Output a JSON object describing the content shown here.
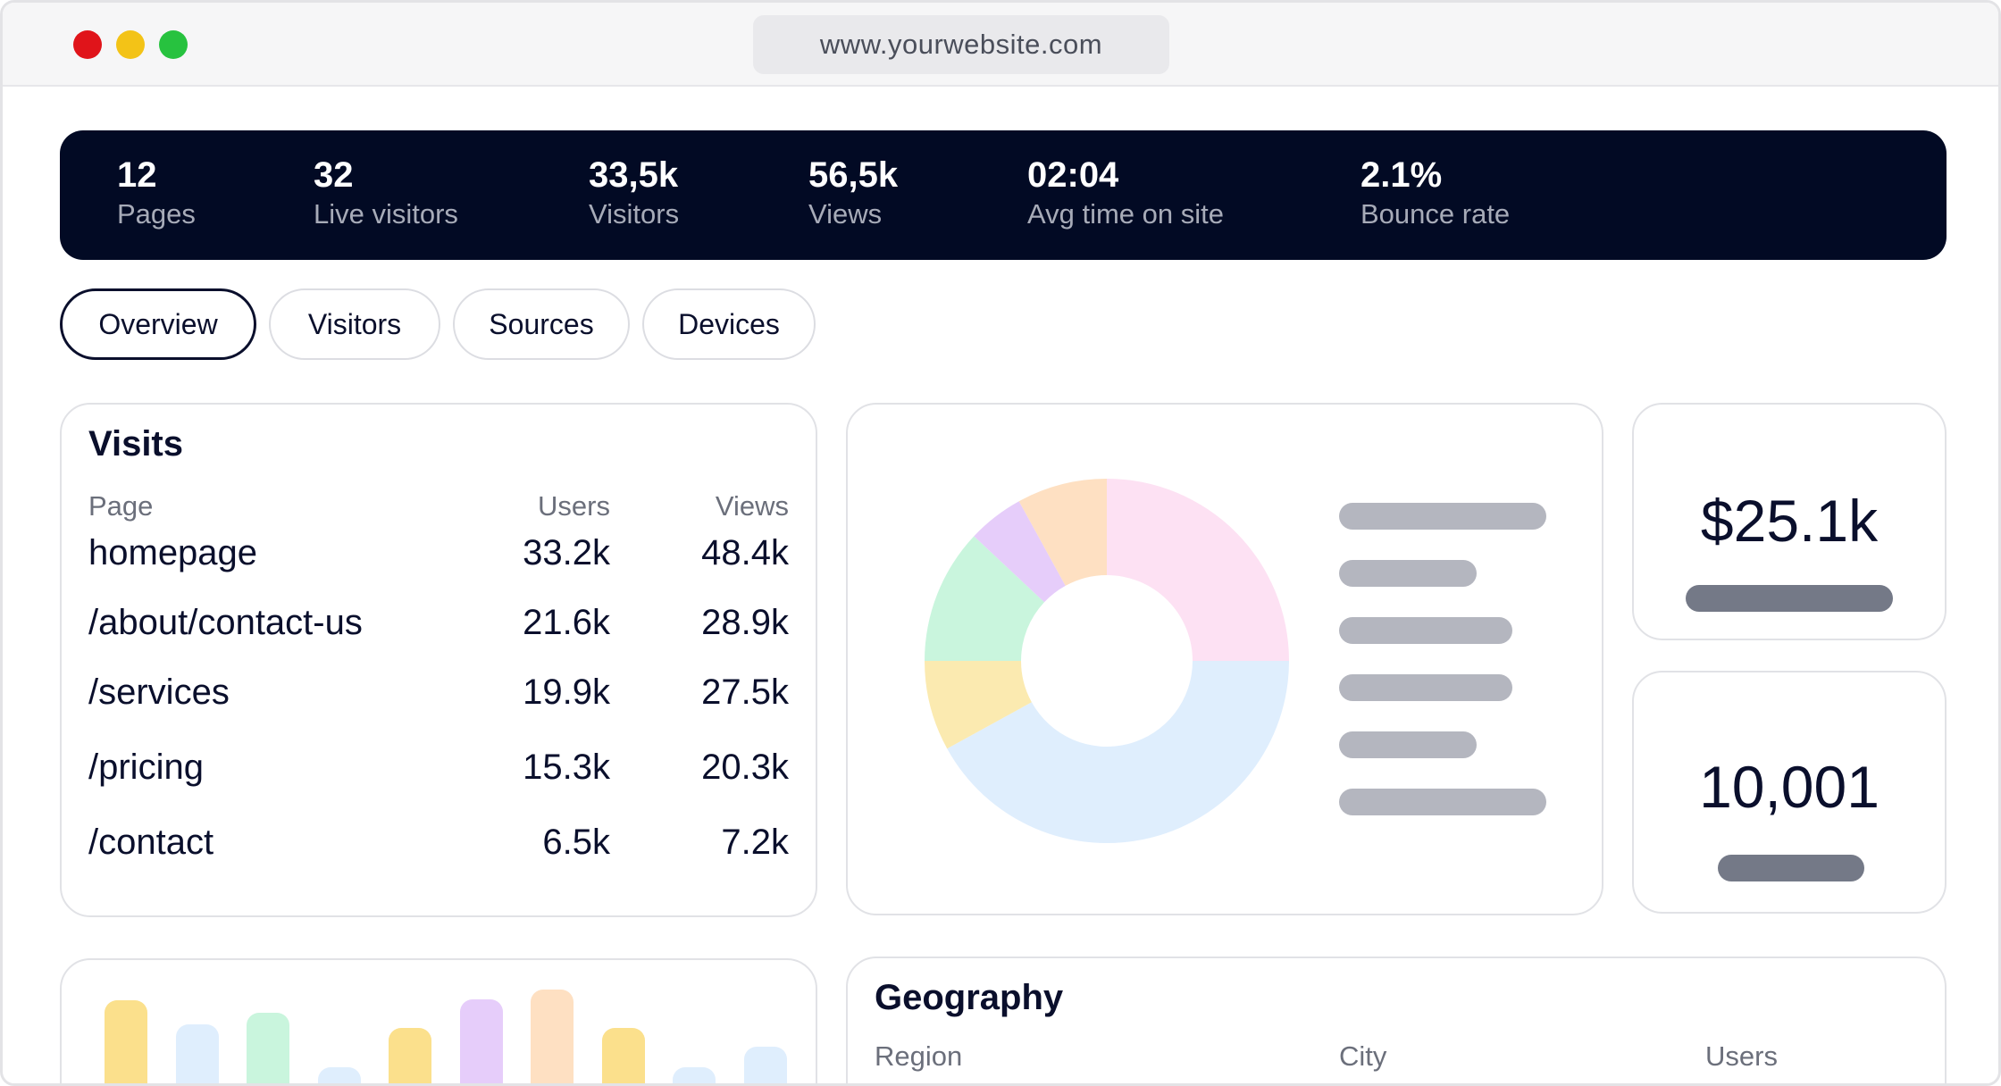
{
  "browser": {
    "url": "www.yourwebsite.com"
  },
  "stats": [
    {
      "value": "12",
      "label": "Pages"
    },
    {
      "value": "32",
      "label": "Live visitors"
    },
    {
      "value": "33,5k",
      "label": "Visitors"
    },
    {
      "value": "56,5k",
      "label": "Views"
    },
    {
      "value": "02:04",
      "label": "Avg time on site"
    },
    {
      "value": "2.1%",
      "label": "Bounce rate"
    }
  ],
  "tabs": [
    "Overview",
    "Visitors",
    "Sources",
    "Devices"
  ],
  "visits": {
    "title": "Visits",
    "columns": [
      "Page",
      "Users",
      "Views"
    ],
    "rows": [
      {
        "page": "homepage",
        "users": "33.2k",
        "views": "48.4k"
      },
      {
        "page": "/about/contact-us",
        "users": "21.6k",
        "views": "28.9k"
      },
      {
        "page": "/services",
        "users": "19.9k",
        "views": "27.5k"
      },
      {
        "page": "/pricing",
        "users": "15.3k",
        "views": "20.3k"
      },
      {
        "page": "/contact",
        "users": "6.5k",
        "views": "7.2k"
      }
    ]
  },
  "kpis": [
    {
      "value": "$25.1k"
    },
    {
      "value": "10,001"
    }
  ],
  "geography": {
    "title": "Geography",
    "columns": [
      "Region",
      "City",
      "Users"
    ]
  },
  "chart_data": [
    {
      "type": "pie",
      "title": "",
      "legend": "right (labels rendered as placeholder bars)",
      "donut": true,
      "values": [
        25,
        42,
        8,
        12,
        5,
        8
      ],
      "colors": [
        "#fde1f3",
        "#dfeefd",
        "#fbeab0",
        "#c9f5dd",
        "#e6cdfa",
        "#fee0c2"
      ]
    },
    {
      "type": "bar",
      "title": "",
      "values": [
        10,
        7.5,
        8.7,
        3,
        7.1,
        10.1,
        11.2,
        7.1,
        3,
        5.2
      ],
      "colors": [
        "#fbe08c",
        "#dfeefd",
        "#c9f5dd",
        "#dfeefd",
        "#fbe08c",
        "#e6cdfa",
        "#fee0c2",
        "#fbe08c",
        "#dfeefd",
        "#dfeefd"
      ],
      "ylim": [
        0,
        12
      ]
    }
  ]
}
